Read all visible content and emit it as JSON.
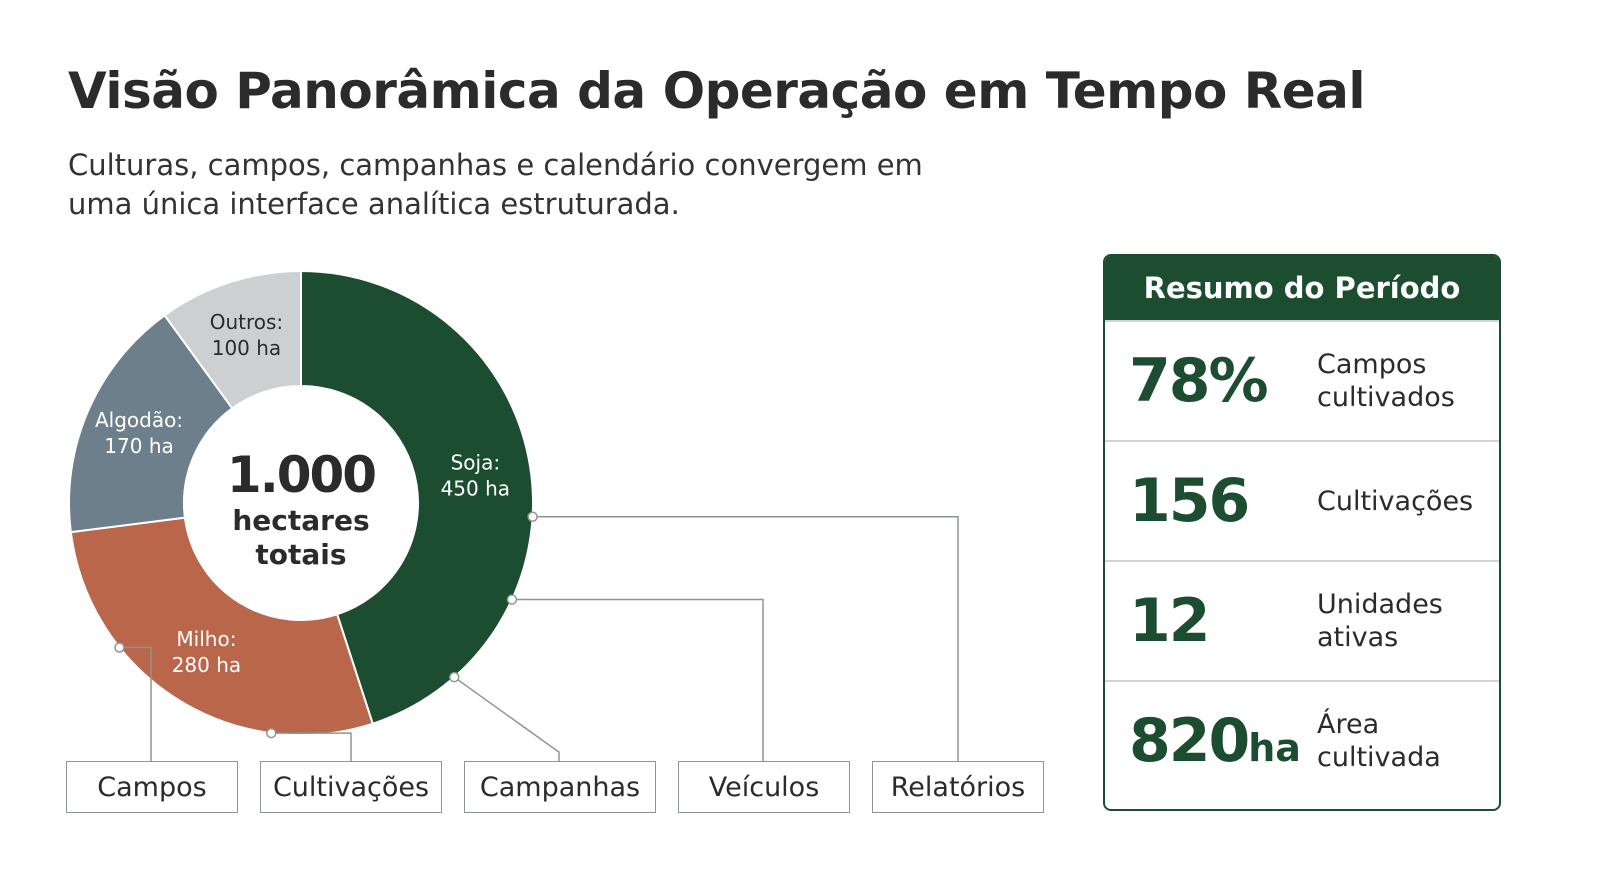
{
  "header": {
    "title": "Visão Panorâmica da Operação em Tempo Real",
    "subtitle": "Culturas, campos, campanhas e calendário convergem em uma única interface analítica estruturada."
  },
  "chart_data": {
    "type": "pie",
    "donut": true,
    "center_value": "1.000",
    "center_label_line1": "hectares",
    "center_label_line2": "totais",
    "unit": "ha",
    "slices": [
      {
        "category": "Soja:",
        "label": "450 ha",
        "value": 450,
        "color": "#1d4d30"
      },
      {
        "category": "Milho:",
        "label": "280 ha",
        "value": 280,
        "color": "#b9664a"
      },
      {
        "category": "Algodão:",
        "label": "170 ha",
        "value": 170,
        "color": "#6e7f8c"
      },
      {
        "category": "Outros:",
        "label": "100 ha",
        "value": 100,
        "color": "#cdd0d1"
      }
    ]
  },
  "modules": [
    {
      "label": "Campos"
    },
    {
      "label": "Cultivações"
    },
    {
      "label": "Campanhas"
    },
    {
      "label": "Veículos"
    },
    {
      "label": "Relatórios"
    }
  ],
  "summary": {
    "title": "Resumo do Período",
    "stats": [
      {
        "value": "78%",
        "unit": "",
        "label": "Campos\ncultivados"
      },
      {
        "value": "156",
        "unit": "",
        "label": "Cultivações"
      },
      {
        "value": "12",
        "unit": "",
        "label": "Unidades\nativas"
      },
      {
        "value": "820",
        "unit": "ha",
        "label": "Área\ncultivada"
      }
    ]
  },
  "colors": {
    "brand_green": "#1d4d30",
    "connector": "#8e9590"
  }
}
